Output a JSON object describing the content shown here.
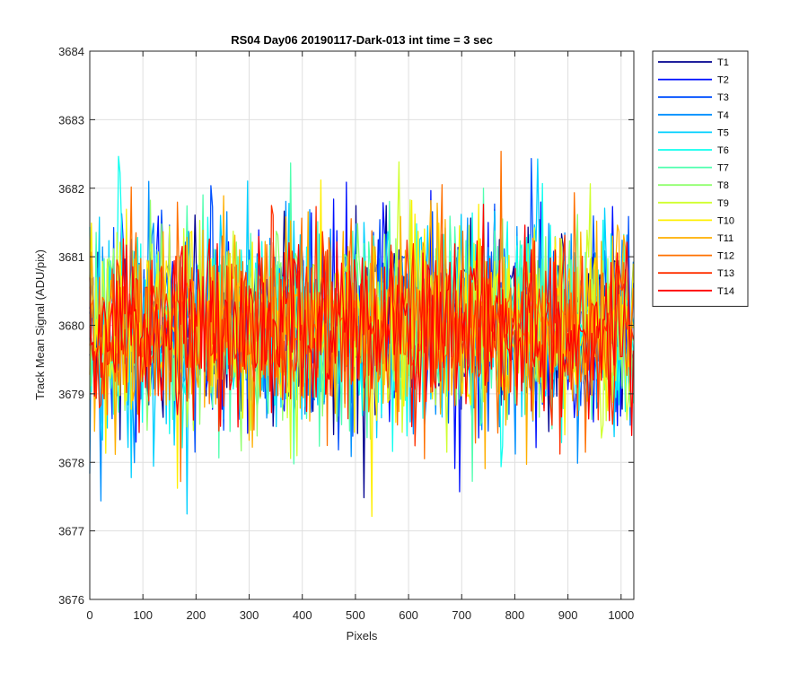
{
  "chart_data": {
    "type": "line",
    "title": "RS04 Day06 20190117-Dark-013 int time = 3 sec",
    "xlabel": "Pixels",
    "ylabel": "Track Mean Signal (ADU/pix)",
    "xlim": [
      0,
      1024
    ],
    "ylim": [
      3676,
      3684
    ],
    "xticks": [
      0,
      100,
      200,
      300,
      400,
      500,
      600,
      700,
      800,
      900,
      1000
    ],
    "yticks": [
      3676,
      3677,
      3678,
      3679,
      3680,
      3681,
      3682,
      3683,
      3684
    ],
    "grid": true,
    "legend_position": "outside-top-right",
    "series": [
      {
        "name": "T1",
        "color": "#00008f",
        "mean": 3680.0,
        "amplitude": 1.6
      },
      {
        "name": "T2",
        "color": "#0010ff",
        "mean": 3680.0,
        "amplitude": 1.6
      },
      {
        "name": "T3",
        "color": "#0050ff",
        "mean": 3680.0,
        "amplitude": 1.6
      },
      {
        "name": "T4",
        "color": "#0090ff",
        "mean": 3680.0,
        "amplitude": 1.6
      },
      {
        "name": "T5",
        "color": "#00d0ff",
        "mean": 3680.0,
        "amplitude": 1.6
      },
      {
        "name": "T6",
        "color": "#10ffef",
        "mean": 3680.0,
        "amplitude": 1.6
      },
      {
        "name": "T7",
        "color": "#50ffaf",
        "mean": 3680.0,
        "amplitude": 1.6
      },
      {
        "name": "T8",
        "color": "#90ff6f",
        "mean": 3680.0,
        "amplitude": 1.6
      },
      {
        "name": "T9",
        "color": "#d0ff2f",
        "mean": 3680.0,
        "amplitude": 1.6
      },
      {
        "name": "T10",
        "color": "#ffef00",
        "mean": 3680.0,
        "amplitude": 1.6
      },
      {
        "name": "T11",
        "color": "#ffaf00",
        "mean": 3680.0,
        "amplitude": 1.6
      },
      {
        "name": "T12",
        "color": "#ff7000",
        "mean": 3680.0,
        "amplitude": 1.6
      },
      {
        "name": "T13",
        "color": "#ff3000",
        "mean": 3680.0,
        "amplitude": 1.6
      },
      {
        "name": "T14",
        "color": "#ff0000",
        "mean": 3680.0,
        "amplitude": 1.4
      }
    ]
  }
}
